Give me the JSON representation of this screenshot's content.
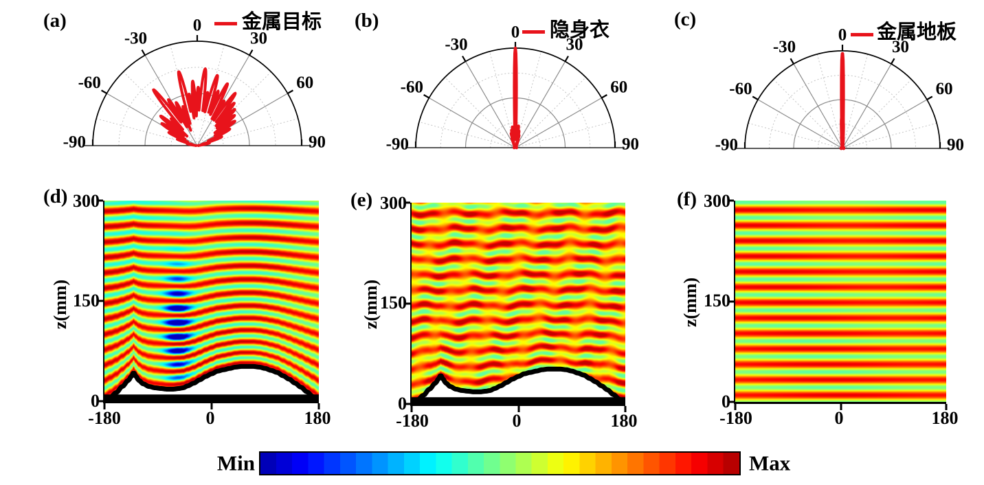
{
  "figure": {
    "background": "#ffffff",
    "accent_red": "#e8131b"
  },
  "colorbar": {
    "min_label": "Min",
    "max_label": "Max",
    "colormap": "jet",
    "segments": 30
  },
  "chart_data": [
    {
      "id": "a",
      "type": "polar",
      "panel": "(a)",
      "legend": "金属目标",
      "angle_ticks": [
        "-90",
        "-60",
        "-30",
        "0",
        "30",
        "60",
        "90"
      ],
      "angle_tick_values": [
        -90,
        -60,
        -30,
        0,
        30,
        60,
        90
      ],
      "r_range": [
        0,
        1
      ],
      "grid": {
        "solid_arcs": [
          0.5,
          1.0
        ],
        "dotted_arcs": [
          0.25,
          0.75
        ],
        "solid_rays": [
          -60,
          -30,
          30,
          60
        ],
        "dotted_rays": [
          -75,
          -45,
          -15,
          15,
          45,
          75
        ]
      },
      "line_color": "#e8131b",
      "lobes": [
        [
          -79,
          0.1,
          2.5
        ],
        [
          -72,
          0.2,
          2.5
        ],
        [
          -65,
          0.3,
          2.5
        ],
        [
          -58,
          0.4,
          2.5
        ],
        [
          -51,
          0.45,
          2.5
        ],
        [
          -44,
          0.36,
          2.2
        ],
        [
          -38,
          0.68,
          2.4
        ],
        [
          -32,
          0.52,
          2.2
        ],
        [
          -26,
          0.46,
          2.2
        ],
        [
          -20,
          0.4,
          2.0
        ],
        [
          -14,
          0.73,
          2.4
        ],
        [
          -9,
          0.5,
          2.0
        ],
        [
          -4,
          0.62,
          2.0
        ],
        [
          1,
          0.56,
          2.0
        ],
        [
          6,
          0.74,
          2.4
        ],
        [
          11,
          0.52,
          2.0
        ],
        [
          16,
          0.7,
          2.4
        ],
        [
          21,
          0.56,
          2.0
        ],
        [
          26,
          0.66,
          2.2
        ],
        [
          31,
          0.5,
          2.0
        ],
        [
          36,
          0.62,
          2.2
        ],
        [
          41,
          0.54,
          2.0
        ],
        [
          46,
          0.5,
          2.2
        ],
        [
          51,
          0.46,
          2.2
        ],
        [
          57,
          0.43,
          2.5
        ],
        [
          63,
          0.35,
          2.5
        ],
        [
          70,
          0.25,
          2.5
        ],
        [
          78,
          0.12,
          2.5
        ]
      ]
    },
    {
      "id": "b",
      "type": "polar",
      "panel": "(b)",
      "legend": "隐身衣",
      "angle_ticks": [
        "-90",
        "-60",
        "-30",
        "0",
        "30",
        "60",
        "90"
      ],
      "angle_tick_values": [
        -90,
        -60,
        -30,
        0,
        30,
        60,
        90
      ],
      "r_range": [
        0,
        1
      ],
      "grid": {
        "solid_arcs": [
          0.5,
          1.0
        ],
        "dotted_arcs": [
          0.25,
          0.75
        ],
        "solid_rays": [
          -60,
          -30,
          30,
          60
        ],
        "dotted_rays": [
          -75,
          -45,
          -15,
          15,
          45,
          75
        ]
      },
      "line_color": "#e8131b",
      "lobes": [
        [
          0,
          1.0,
          0.9
        ],
        [
          -20,
          0.1,
          1.6
        ],
        [
          -16,
          0.15,
          1.6
        ],
        [
          -12,
          0.18,
          1.6
        ],
        [
          -8,
          0.21,
          1.6
        ],
        [
          -4,
          0.17,
          1.6
        ],
        [
          4,
          0.19,
          1.6
        ],
        [
          8,
          0.22,
          1.6
        ],
        [
          12,
          0.17,
          1.6
        ],
        [
          16,
          0.13,
          1.6
        ],
        [
          20,
          0.08,
          1.6
        ]
      ]
    },
    {
      "id": "c",
      "type": "polar",
      "panel": "(c)",
      "legend": "金属地板",
      "angle_ticks": [
        "-90",
        "-60",
        "-30",
        "0",
        "30",
        "60",
        "90"
      ],
      "angle_tick_values": [
        -90,
        -60,
        -30,
        0,
        30,
        60,
        90
      ],
      "r_range": [
        0,
        1
      ],
      "grid": {
        "solid_arcs": [
          0.5,
          1.0
        ],
        "dotted_arcs": [
          0.25,
          0.75
        ],
        "solid_rays": [
          -60,
          -30,
          30,
          60
        ],
        "dotted_rays": [
          -75,
          -45,
          -15,
          15,
          45,
          75
        ]
      },
      "line_color": "#e8131b",
      "lobes": [
        [
          0,
          0.97,
          0.8
        ],
        [
          -1.5,
          0.3,
          1.0
        ],
        [
          1.5,
          0.26,
          1.0
        ],
        [
          -3,
          0.13,
          1.3
        ],
        [
          3,
          0.11,
          1.3
        ]
      ]
    },
    {
      "id": "d",
      "type": "heatmap",
      "panel": "(d)",
      "pattern": "scattered",
      "ylabel": "z(mm)",
      "ytick_labels": [
        "0",
        "150",
        "300"
      ],
      "ytick_values": [
        0,
        150,
        300
      ],
      "xtick_labels": [
        "-180",
        "0",
        "180"
      ],
      "xtick_values": [
        -180,
        0,
        180
      ],
      "x_range": [
        -180,
        180
      ],
      "z_range": [
        0,
        300
      ],
      "wavelength_mm": 23,
      "has_bump": true,
      "bump_profile": [
        [
          -180,
          0
        ],
        [
          -170,
          6
        ],
        [
          -160,
          13
        ],
        [
          -150,
          22
        ],
        [
          -140,
          31
        ],
        [
          -134,
          38
        ],
        [
          -131,
          43
        ],
        [
          -128,
          38
        ],
        [
          -122,
          31
        ],
        [
          -115,
          26
        ],
        [
          -105,
          22
        ],
        [
          -95,
          20
        ],
        [
          -85,
          19
        ],
        [
          -75,
          18
        ],
        [
          -65,
          18
        ],
        [
          -55,
          19
        ],
        [
          -48,
          20
        ],
        [
          -40,
          23
        ],
        [
          -30,
          27
        ],
        [
          -20,
          32
        ],
        [
          -10,
          37
        ],
        [
          0,
          41
        ],
        [
          10,
          45
        ],
        [
          20,
          47
        ],
        [
          30,
          49
        ],
        [
          40,
          51
        ],
        [
          50,
          52
        ],
        [
          60,
          52
        ],
        [
          70,
          52
        ],
        [
          80,
          51
        ],
        [
          90,
          49
        ],
        [
          100,
          46
        ],
        [
          110,
          43
        ],
        [
          120,
          38
        ],
        [
          130,
          33
        ],
        [
          140,
          27
        ],
        [
          150,
          21
        ],
        [
          160,
          14
        ],
        [
          170,
          7
        ],
        [
          180,
          0
        ]
      ]
    },
    {
      "id": "e",
      "type": "heatmap",
      "panel": "(e)",
      "pattern": "cloaked",
      "ylabel": "z(mm)",
      "ytick_labels": [
        "0",
        "150",
        "300"
      ],
      "ytick_values": [
        0,
        150,
        300
      ],
      "xtick_labels": [
        "-180",
        "0",
        "180"
      ],
      "xtick_values": [
        -180,
        0,
        180
      ],
      "x_range": [
        -180,
        180
      ],
      "z_range": [
        0,
        300
      ],
      "wavelength_mm": 23,
      "has_bump": true,
      "bump_profile": [
        [
          -180,
          0
        ],
        [
          -170,
          6
        ],
        [
          -160,
          13
        ],
        [
          -150,
          22
        ],
        [
          -140,
          31
        ],
        [
          -134,
          38
        ],
        [
          -131,
          43
        ],
        [
          -128,
          38
        ],
        [
          -122,
          31
        ],
        [
          -115,
          26
        ],
        [
          -105,
          22
        ],
        [
          -95,
          20
        ],
        [
          -85,
          19
        ],
        [
          -75,
          18
        ],
        [
          -65,
          18
        ],
        [
          -55,
          19
        ],
        [
          -48,
          20
        ],
        [
          -40,
          23
        ],
        [
          -30,
          27
        ],
        [
          -20,
          32
        ],
        [
          -10,
          37
        ],
        [
          0,
          41
        ],
        [
          10,
          45
        ],
        [
          20,
          47
        ],
        [
          30,
          49
        ],
        [
          40,
          51
        ],
        [
          50,
          52
        ],
        [
          60,
          52
        ],
        [
          70,
          52
        ],
        [
          80,
          51
        ],
        [
          90,
          49
        ],
        [
          100,
          46
        ],
        [
          110,
          43
        ],
        [
          120,
          38
        ],
        [
          130,
          33
        ],
        [
          140,
          27
        ],
        [
          150,
          21
        ],
        [
          160,
          14
        ],
        [
          170,
          7
        ],
        [
          180,
          0
        ]
      ]
    },
    {
      "id": "f",
      "type": "heatmap",
      "panel": "(f)",
      "pattern": "flat",
      "ylabel": "z(mm)",
      "ytick_labels": [
        "0",
        "150",
        "300"
      ],
      "ytick_values": [
        0,
        150,
        300
      ],
      "xtick_labels": [
        "-180",
        "0",
        "180"
      ],
      "xtick_values": [
        -180,
        0,
        180
      ],
      "x_range": [
        -180,
        180
      ],
      "z_range": [
        0,
        300
      ],
      "wavelength_mm": 23,
      "has_bump": false,
      "bump_profile": []
    }
  ]
}
